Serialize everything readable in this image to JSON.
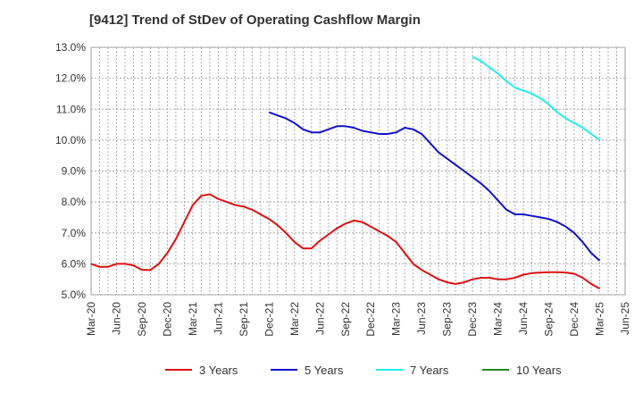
{
  "chart_data": {
    "type": "line",
    "title": "[9412]  Trend of StDev of Operating Cashflow Margin",
    "xlabel": "",
    "ylabel": "",
    "ylim": [
      5.0,
      13.0
    ],
    "yticks": [
      "5.0%",
      "6.0%",
      "7.0%",
      "8.0%",
      "9.0%",
      "10.0%",
      "11.0%",
      "12.0%",
      "13.0%"
    ],
    "xticks": [
      "Mar-20",
      "Jun-20",
      "Sep-20",
      "Dec-20",
      "Mar-21",
      "Jun-21",
      "Sep-21",
      "Dec-21",
      "Mar-22",
      "Jun-22",
      "Sep-22",
      "Dec-22",
      "Mar-23",
      "Jun-23",
      "Sep-23",
      "Dec-23",
      "Mar-24",
      "Jun-24",
      "Sep-24",
      "Dec-24",
      "Mar-25",
      "Jun-25"
    ],
    "grid": true,
    "legend_position": "bottom",
    "series": [
      {
        "name": "3 Years",
        "color": "#dd1111",
        "start_index": 0,
        "values": [
          6.0,
          5.9,
          5.9,
          6.0,
          6.0,
          5.95,
          5.8,
          5.8,
          6.0,
          6.35,
          6.8,
          7.35,
          7.9,
          8.2,
          8.25,
          8.1,
          8.0,
          7.9,
          7.85,
          7.75,
          7.6,
          7.45,
          7.25,
          7.0,
          6.7,
          6.5,
          6.5,
          6.75,
          6.95,
          7.15,
          7.3,
          7.4,
          7.35,
          7.2,
          7.05,
          6.9,
          6.7,
          6.35,
          6.0,
          5.8,
          5.65,
          5.5,
          5.4,
          5.35,
          5.4,
          5.5,
          5.55,
          5.55,
          5.5,
          5.5,
          5.55,
          5.65,
          5.7,
          5.72,
          5.73,
          5.73,
          5.72,
          5.68,
          5.55,
          5.35,
          5.2
        ]
      },
      {
        "name": "5 Years",
        "color": "#1111cc",
        "start_index": 21,
        "values": [
          10.9,
          10.8,
          10.7,
          10.55,
          10.35,
          10.25,
          10.25,
          10.35,
          10.45,
          10.45,
          10.4,
          10.3,
          10.25,
          10.2,
          10.2,
          10.25,
          10.4,
          10.35,
          10.2,
          9.9,
          9.6,
          9.4,
          9.2,
          9.0,
          8.8,
          8.6,
          8.35,
          8.05,
          7.75,
          7.6,
          7.6,
          7.55,
          7.5,
          7.45,
          7.35,
          7.2,
          7.0,
          6.7,
          6.35,
          6.1
        ]
      },
      {
        "name": "7 Years",
        "color": "#22eeee",
        "start_index": 45,
        "values": [
          12.7,
          12.55,
          12.35,
          12.15,
          11.9,
          11.7,
          11.6,
          11.5,
          11.35,
          11.15,
          10.9,
          10.7,
          10.55,
          10.4,
          10.2,
          10.0
        ]
      },
      {
        "name": "10 Years",
        "color": "#228822",
        "start_index": 0,
        "values": []
      }
    ]
  }
}
